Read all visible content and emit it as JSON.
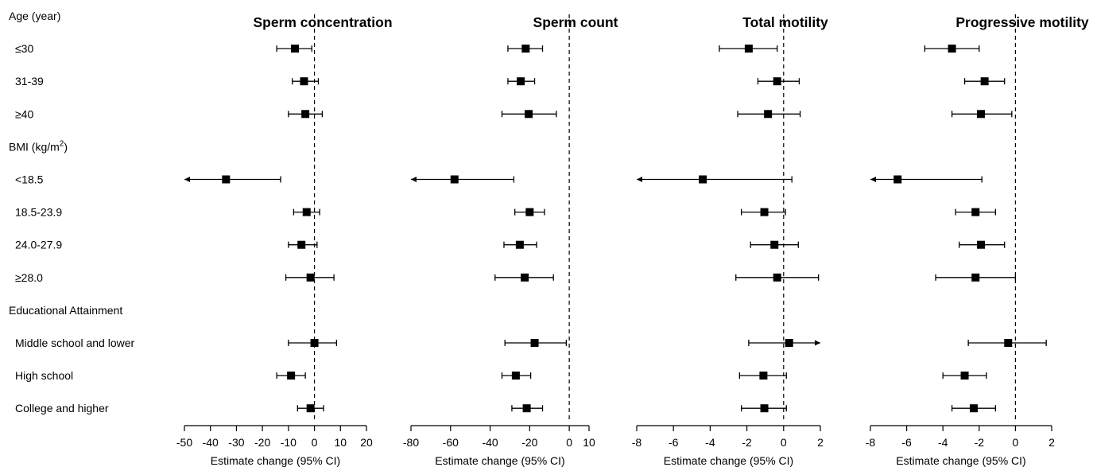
{
  "chart_data": {
    "type": "forest",
    "rows": [
      {
        "label": "Age (year)",
        "header": true
      },
      {
        "label": "≤30",
        "header": false
      },
      {
        "label": "31-39",
        "header": false
      },
      {
        "label": "≥40",
        "header": false
      },
      {
        "label": "BMI (kg/m",
        "sup": "2",
        "suffix": ")",
        "header": true
      },
      {
        "label": "<18.5",
        "header": false
      },
      {
        "label": "18.5-23.9",
        "header": false
      },
      {
        "label": "24.0-27.9",
        "header": false
      },
      {
        "label": "≥28.0",
        "header": false
      },
      {
        "label": "Educational Attainment",
        "header": true
      },
      {
        "label": "Middle school and lower",
        "header": false
      },
      {
        "label": "High school",
        "header": false
      },
      {
        "label": "College and higher",
        "header": false
      }
    ],
    "panels": [
      {
        "title": "Sperm concentration",
        "xlabel": "Estimate change (95% CI)",
        "xlim": [
          -50,
          20
        ],
        "ticks": [
          -50,
          -40,
          -30,
          -20,
          -10,
          0,
          10,
          20
        ],
        "reference_line": 0,
        "estimates": [
          null,
          {
            "est": -7.5,
            "lo": -14.5,
            "hi": -1.0
          },
          {
            "est": -4.0,
            "lo": -8.5,
            "hi": 1.5
          },
          {
            "est": -3.5,
            "lo": -10.0,
            "hi": 3.0
          },
          null,
          {
            "est": -34.0,
            "lo": -50.0,
            "hi": -13.0,
            "arrow_lo": true
          },
          {
            "est": -3.0,
            "lo": -8.0,
            "hi": 2.0
          },
          {
            "est": -5.0,
            "lo": -10.0,
            "hi": 1.0
          },
          {
            "est": -1.5,
            "lo": -11.0,
            "hi": 7.5
          },
          null,
          {
            "est": 0.0,
            "lo": -10.0,
            "hi": 8.5
          },
          {
            "est": -9.0,
            "lo": -14.5,
            "hi": -3.5
          },
          {
            "est": -1.5,
            "lo": -6.5,
            "hi": 3.5
          }
        ]
      },
      {
        "title": "Sperm count",
        "xlabel": "Estimate change (95% CI)",
        "xlim": [
          -80,
          10
        ],
        "ticks": [
          -80,
          -60,
          -40,
          -20,
          0,
          10
        ],
        "reference_line": 0,
        "estimates": [
          null,
          {
            "est": -22.0,
            "lo": -31.0,
            "hi": -13.5
          },
          {
            "est": -24.5,
            "lo": -31.0,
            "hi": -17.5
          },
          {
            "est": -20.5,
            "lo": -34.0,
            "hi": -6.5
          },
          null,
          {
            "est": -58.0,
            "lo": -80.0,
            "hi": -28.0,
            "arrow_lo": true
          },
          {
            "est": -20.0,
            "lo": -27.5,
            "hi": -12.5
          },
          {
            "est": -25.0,
            "lo": -33.0,
            "hi": -16.5
          },
          {
            "est": -22.5,
            "lo": -37.5,
            "hi": -8.0
          },
          null,
          {
            "est": -17.5,
            "lo": -32.5,
            "hi": -1.5
          },
          {
            "est": -27.0,
            "lo": -34.0,
            "hi": -19.5
          },
          {
            "est": -21.5,
            "lo": -29.0,
            "hi": -13.5
          }
        ]
      },
      {
        "title": "Total motility",
        "xlabel": "Estimate change (95% CI)",
        "xlim": [
          -8,
          2
        ],
        "ticks": [
          -8,
          -6,
          -4,
          -2,
          0,
          2
        ],
        "reference_line": 0,
        "estimates": [
          null,
          {
            "est": -1.9,
            "lo": -3.5,
            "hi": -0.35
          },
          {
            "est": -0.35,
            "lo": -1.4,
            "hi": 0.85
          },
          {
            "est": -0.85,
            "lo": -2.5,
            "hi": 0.9
          },
          null,
          {
            "est": -4.4,
            "lo": -8.0,
            "hi": 0.45,
            "arrow_lo": true
          },
          {
            "est": -1.05,
            "lo": -2.3,
            "hi": 0.1
          },
          {
            "est": -0.5,
            "lo": -1.8,
            "hi": 0.8
          },
          {
            "est": -0.35,
            "lo": -2.6,
            "hi": 1.9
          },
          null,
          {
            "est": 0.3,
            "lo": -1.9,
            "hi": 2.0,
            "arrow_hi": true
          },
          {
            "est": -1.1,
            "lo": -2.4,
            "hi": 0.15
          },
          {
            "est": -1.05,
            "lo": -2.3,
            "hi": 0.15
          }
        ]
      },
      {
        "title": "Progressive motility",
        "xlabel": "Estimate change (95% CI)",
        "xlim": [
          -8,
          2
        ],
        "ticks": [
          -8,
          -6,
          -4,
          -2,
          0,
          2
        ],
        "reference_line": 0,
        "estimates": [
          null,
          {
            "est": -3.5,
            "lo": -5.0,
            "hi": -2.0
          },
          {
            "est": -1.7,
            "lo": -2.8,
            "hi": -0.6
          },
          {
            "est": -1.9,
            "lo": -3.5,
            "hi": -0.2
          },
          null,
          {
            "est": -6.5,
            "lo": -8.0,
            "hi": -1.85,
            "arrow_lo": true
          },
          {
            "est": -2.2,
            "lo": -3.3,
            "hi": -1.1
          },
          {
            "est": -1.9,
            "lo": -3.1,
            "hi": -0.6
          },
          {
            "est": -2.2,
            "lo": -4.4,
            "hi": 0.0
          },
          null,
          {
            "est": -0.4,
            "lo": -2.6,
            "hi": 1.7
          },
          {
            "est": -2.8,
            "lo": -4.0,
            "hi": -1.6
          },
          {
            "est": -2.3,
            "lo": -3.5,
            "hi": -1.1
          }
        ]
      }
    ]
  }
}
